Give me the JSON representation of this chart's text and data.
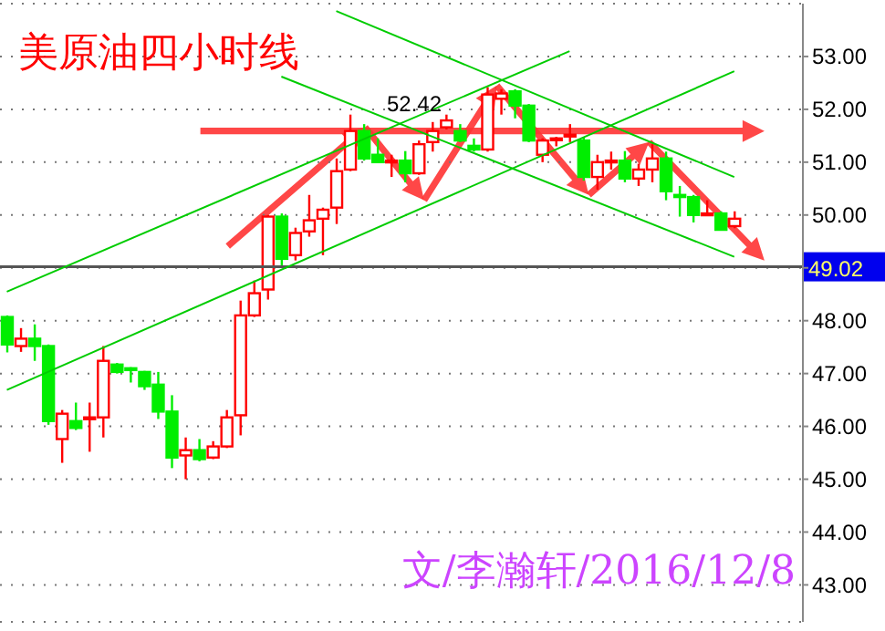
{
  "chart_data": {
    "type": "candlestick",
    "title": "美原油四小时线",
    "annotations": [
      "52.42",
      "文/李瀚轩/2016/12/8"
    ],
    "categories": [
      null,
      null,
      null,
      null,
      null,
      null,
      null,
      null,
      null,
      null,
      null,
      null,
      null,
      null,
      null,
      null,
      null,
      null,
      null,
      null,
      null,
      null,
      null,
      null,
      null,
      null,
      null,
      null,
      null,
      null,
      null,
      null,
      null,
      null,
      null,
      null,
      null,
      null,
      null,
      null,
      null,
      null,
      null,
      null,
      null,
      null,
      null,
      null,
      null,
      null,
      null,
      null,
      null,
      null
    ],
    "ohlc": [
      [
        48.07,
        48.1,
        47.4,
        47.55
      ],
      [
        47.52,
        47.86,
        47.41,
        47.66
      ],
      [
        47.66,
        47.93,
        47.24,
        47.52
      ],
      [
        47.52,
        47.55,
        46.03,
        46.1
      ],
      [
        45.76,
        46.31,
        45.31,
        46.24
      ],
      [
        46.1,
        46.45,
        45.93,
        45.97
      ],
      [
        46.17,
        46.45,
        45.52,
        46.17
      ],
      [
        46.17,
        47.52,
        45.79,
        47.24
      ],
      [
        47.17,
        47.2,
        47.0,
        47.03
      ],
      [
        47.1,
        47.12,
        46.83,
        47.07
      ],
      [
        47.03,
        47.05,
        46.69,
        46.76
      ],
      [
        46.79,
        47.03,
        46.14,
        46.28
      ],
      [
        46.28,
        46.59,
        45.21,
        45.41
      ],
      [
        45.45,
        45.79,
        45.0,
        45.55
      ],
      [
        45.55,
        45.76,
        45.34,
        45.38
      ],
      [
        45.41,
        45.72,
        45.38,
        45.62
      ],
      [
        45.62,
        46.31,
        45.59,
        46.17
      ],
      [
        46.21,
        48.38,
        45.83,
        48.1
      ],
      [
        48.1,
        48.76,
        48.07,
        48.52
      ],
      [
        48.59,
        50.0,
        48.4,
        49.97
      ],
      [
        49.97,
        50.03,
        49.0,
        49.17
      ],
      [
        49.24,
        49.76,
        49.14,
        49.66
      ],
      [
        49.69,
        50.38,
        49.59,
        49.9
      ],
      [
        49.93,
        50.14,
        49.24,
        50.1
      ],
      [
        50.14,
        51.07,
        49.83,
        50.83
      ],
      [
        50.86,
        51.9,
        50.83,
        51.59
      ],
      [
        51.59,
        51.72,
        51.03,
        51.07
      ],
      [
        51.14,
        51.45,
        51.0,
        51.0
      ],
      [
        51.03,
        51.14,
        50.72,
        51.03
      ],
      [
        51.03,
        51.21,
        50.62,
        50.79
      ],
      [
        50.79,
        51.41,
        50.76,
        51.34
      ],
      [
        51.38,
        51.76,
        51.2,
        51.59
      ],
      [
        51.66,
        51.9,
        51.62,
        51.79
      ],
      [
        51.59,
        51.72,
        51.38,
        51.41
      ],
      [
        51.31,
        51.45,
        51.2,
        51.24
      ],
      [
        51.24,
        52.42,
        51.2,
        52.28
      ],
      [
        52.2,
        52.38,
        51.9,
        52.3
      ],
      [
        52.34,
        52.38,
        51.83,
        52.07
      ],
      [
        52.07,
        52.1,
        51.38,
        51.41
      ],
      [
        51.14,
        51.45,
        51.0,
        51.41
      ],
      [
        51.45,
        51.48,
        51.3,
        51.45
      ],
      [
        51.52,
        51.72,
        51.38,
        51.52
      ],
      [
        51.41,
        51.48,
        50.65,
        50.72
      ],
      [
        50.72,
        51.14,
        50.48,
        51.0
      ],
      [
        51.03,
        51.2,
        50.86,
        51.03
      ],
      [
        51.03,
        51.21,
        50.62,
        50.69
      ],
      [
        50.69,
        50.97,
        50.55,
        50.86
      ],
      [
        50.86,
        51.34,
        50.62,
        51.07
      ],
      [
        51.07,
        51.2,
        50.28,
        50.45
      ],
      [
        50.38,
        50.55,
        49.97,
        50.34
      ],
      [
        50.34,
        50.38,
        49.86,
        50.0
      ],
      [
        50.03,
        50.28,
        50.0,
        50.03
      ],
      [
        50.03,
        50.07,
        49.72,
        49.72
      ],
      [
        49.79,
        50.07,
        49.75,
        49.93
      ]
    ],
    "series": [
      {
        "type": "line",
        "color": "#00cc00",
        "values": [
          48.55,
          null,
          null,
          null,
          null,
          null,
          null,
          null,
          null,
          null,
          null,
          null,
          null,
          null,
          null,
          null,
          null,
          null,
          null,
          null,
          null,
          null,
          null,
          null,
          null,
          null,
          null,
          null,
          null,
          null,
          null,
          null,
          null,
          null,
          null,
          null,
          null,
          null,
          null,
          null,
          null,
          53.1,
          null,
          null,
          null,
          null,
          null,
          null,
          null,
          null,
          null,
          null,
          null,
          null
        ]
      },
      {
        "type": "line",
        "color": "#00cc00",
        "values": [
          46.69,
          null,
          null,
          null,
          null,
          null,
          null,
          null,
          null,
          null,
          null,
          null,
          null,
          null,
          null,
          null,
          null,
          null,
          null,
          null,
          null,
          null,
          null,
          null,
          null,
          null,
          null,
          null,
          null,
          null,
          null,
          null,
          null,
          null,
          null,
          null,
          null,
          null,
          null,
          null,
          null,
          null,
          null,
          null,
          null,
          null,
          null,
          null,
          null,
          null,
          null,
          null,
          null,
          52.72
        ]
      },
      {
        "type": "line",
        "color": "#00cc00",
        "values": [
          null,
          null,
          null,
          null,
          null,
          null,
          null,
          null,
          null,
          null,
          null,
          null,
          null,
          null,
          null,
          null,
          null,
          null,
          null,
          null,
          null,
          null,
          null,
          null,
          53.86,
          null,
          null,
          null,
          null,
          null,
          null,
          null,
          null,
          null,
          null,
          null,
          null,
          null,
          null,
          null,
          null,
          null,
          null,
          null,
          null,
          null,
          null,
          null,
          null,
          null,
          null,
          null,
          null,
          50.72
        ]
      },
      {
        "type": "line",
        "color": "#00cc00",
        "values": [
          null,
          null,
          null,
          null,
          null,
          null,
          null,
          null,
          null,
          null,
          null,
          null,
          null,
          null,
          null,
          null,
          null,
          null,
          null,
          null,
          52.62,
          null,
          null,
          null,
          null,
          null,
          null,
          null,
          null,
          null,
          null,
          null,
          null,
          null,
          null,
          null,
          null,
          null,
          null,
          null,
          null,
          null,
          null,
          null,
          null,
          null,
          null,
          null,
          null,
          null,
          null,
          null,
          null,
          49.21
        ]
      }
    ],
    "ref_lines": [
      {
        "axis": "y",
        "value": 49.02,
        "label": "49.02",
        "color": "#555555"
      }
    ],
    "ylim": [
      42.3,
      54
    ],
    "yticks": [
      {
        "value": 43,
        "label": "43.00"
      },
      {
        "value": 44,
        "label": "44.00"
      },
      {
        "value": 45,
        "label": "45.00"
      },
      {
        "value": 46,
        "label": "46.00"
      },
      {
        "value": 47,
        "label": "47.00"
      },
      {
        "value": 48,
        "label": "48.00"
      },
      {
        "value": 49,
        "label": null
      },
      {
        "value": 50,
        "label": "50.00"
      },
      {
        "value": 51,
        "label": "51.00"
      },
      {
        "value": 52,
        "label": "52.00"
      },
      {
        "value": 53,
        "label": "53.00"
      }
    ],
    "grid": "y",
    "tick_labels": "y"
  }
}
